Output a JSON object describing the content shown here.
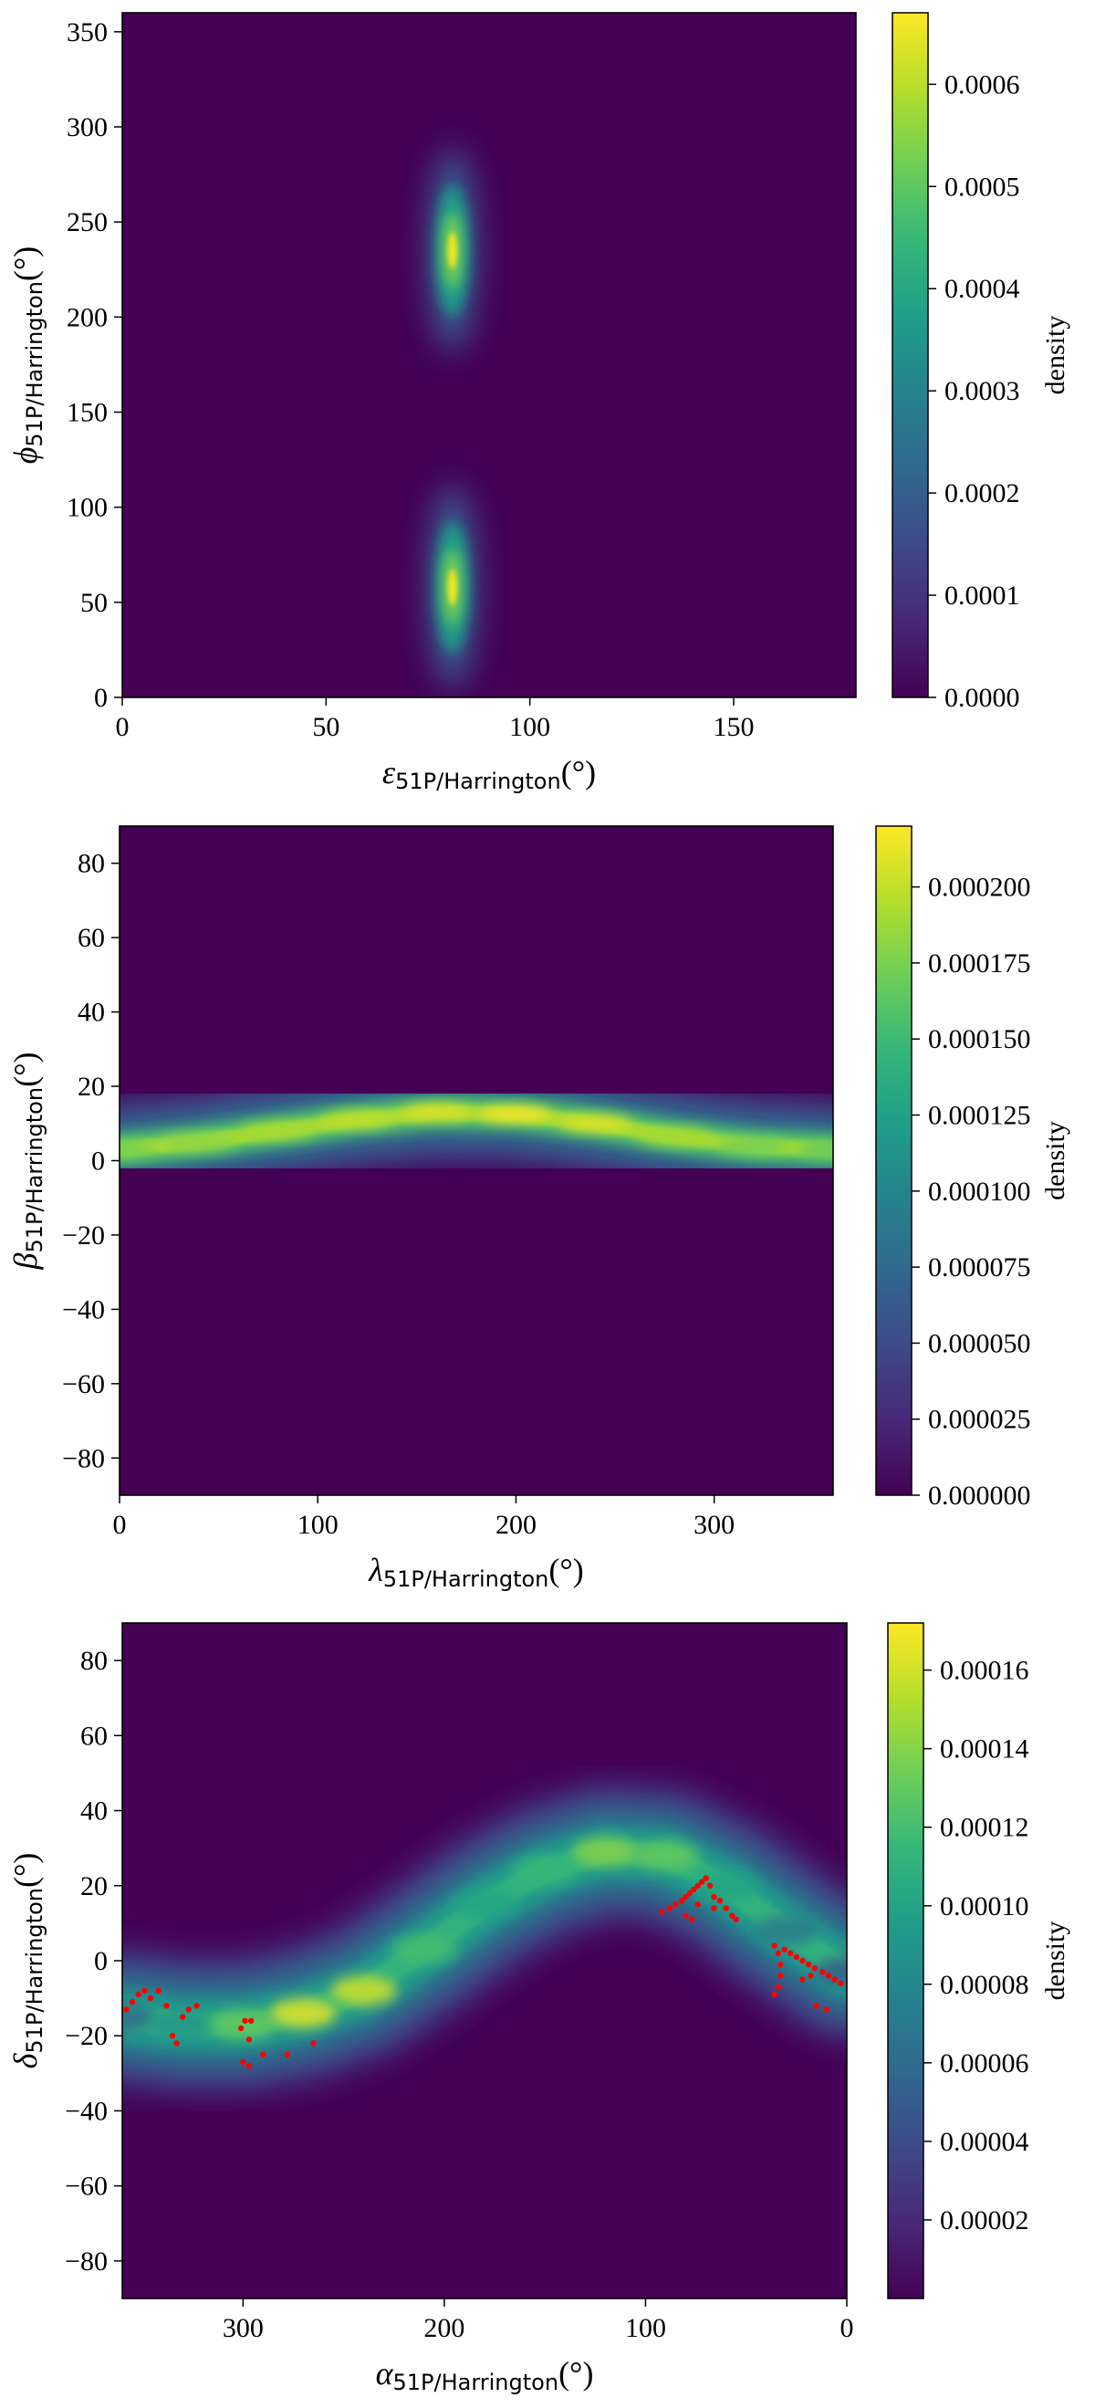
{
  "chart_data": [
    {
      "type": "heatmap",
      "xlabel": {
        "symbol": "ε",
        "sub": "51P/Harrington",
        "unit": "(°)"
      },
      "ylabel": {
        "symbol": "ϕ",
        "sub": "51P/Harrington",
        "unit": "(°)"
      },
      "xlim": [
        0,
        180
      ],
      "ylim": [
        0,
        360
      ],
      "x_reversed": false,
      "xticks": [
        0,
        50,
        100,
        150
      ],
      "yticks": [
        0,
        50,
        100,
        150,
        200,
        250,
        300,
        350
      ],
      "colorbar_label": "density",
      "colorbar_range": [
        0,
        0.00067
      ],
      "colorbar_ticks": [
        "0.0000",
        "0.0001",
        "0.0002",
        "0.0003",
        "0.0004",
        "0.0005",
        "0.0006"
      ],
      "colorbar_tick_values": [
        0,
        0.0001,
        0.0002,
        0.0003,
        0.0004,
        0.0005,
        0.0006
      ],
      "density_peaks": [
        {
          "x": 81,
          "y": 235,
          "peak": 0.00066
        },
        {
          "x": 81,
          "y": 58,
          "peak": 0.00066
        }
      ],
      "observations": []
    },
    {
      "type": "heatmap",
      "xlabel": {
        "symbol": "λ",
        "sub": "51P/Harrington",
        "unit": "(°)"
      },
      "ylabel": {
        "symbol": "β",
        "sub": "51P/Harrington",
        "unit": "(°)"
      },
      "xlim": [
        0,
        360
      ],
      "ylim": [
        -90,
        90
      ],
      "x_reversed": false,
      "xticks": [
        0,
        100,
        200,
        300
      ],
      "yticks": [
        -80,
        -60,
        -40,
        -20,
        0,
        20,
        40,
        60,
        80
      ],
      "colorbar_label": "density",
      "colorbar_range": [
        0,
        0.00022
      ],
      "colorbar_ticks": [
        "0.000000",
        "0.000025",
        "0.000050",
        "0.000075",
        "0.000100",
        "0.000125",
        "0.000150",
        "0.000175",
        "0.000200"
      ],
      "colorbar_tick_values": [
        0,
        2.5e-05,
        5e-05,
        7.5e-05,
        0.0001,
        0.000125,
        0.00015,
        0.000175,
        0.0002
      ],
      "density_ridge": {
        "x": [
          0,
          40,
          80,
          120,
          160,
          200,
          240,
          280,
          320,
          360
        ],
        "y": [
          3,
          5,
          8,
          11,
          13,
          12.5,
          10,
          6.5,
          4,
          3
        ],
        "peak": [
          0.00017,
          0.00018,
          0.00019,
          0.0002,
          0.00021,
          0.00022,
          0.00021,
          0.00019,
          0.00017,
          0.00016
        ]
      },
      "observations": []
    },
    {
      "type": "heatmap",
      "xlabel": {
        "symbol": "α",
        "sub": "51P/Harrington",
        "unit": "(°)"
      },
      "ylabel": {
        "symbol": "δ",
        "sub": "51P/Harrington",
        "unit": "(°)"
      },
      "xlim": [
        360,
        0
      ],
      "ylim": [
        -90,
        90
      ],
      "x_reversed": true,
      "xticks": [
        300,
        200,
        100,
        0
      ],
      "yticks": [
        -80,
        -60,
        -40,
        -20,
        0,
        20,
        40,
        60,
        80
      ],
      "colorbar_label": "density",
      "colorbar_range": [
        0,
        0.000172
      ],
      "colorbar_ticks": [
        "0.00002",
        "0.00004",
        "0.00006",
        "0.00008",
        "0.00010",
        "0.00012",
        "0.00014",
        "0.00016"
      ],
      "colorbar_tick_values": [
        2e-05,
        4e-05,
        6e-05,
        8e-05,
        0.0001,
        0.00012,
        0.00014,
        0.00016
      ],
      "density_ridge": {
        "x": [
          360,
          330,
          300,
          270,
          240,
          210,
          180,
          150,
          120,
          90,
          60,
          30,
          0
        ],
        "y": [
          -15,
          -17,
          -17,
          -14,
          -8,
          3,
          15,
          24,
          29,
          28,
          20,
          8,
          -3
        ],
        "peak": [
          6e-05,
          9e-05,
          0.00013,
          0.000165,
          0.00016,
          0.00012,
          0.0001,
          0.000115,
          0.00014,
          0.00013,
          0.0001,
          7e-05,
          5e-05
        ]
      },
      "observations": {
        "color": "#ff0000",
        "points": [
          [
            358,
            -13
          ],
          [
            355,
            -11
          ],
          [
            352,
            -9
          ],
          [
            349,
            -8
          ],
          [
            346,
            -10
          ],
          [
            342,
            -8
          ],
          [
            338,
            -12
          ],
          [
            335,
            -20
          ],
          [
            333,
            -22
          ],
          [
            330,
            -15
          ],
          [
            327,
            -13
          ],
          [
            323,
            -12
          ],
          [
            301,
            -18
          ],
          [
            299,
            -16
          ],
          [
            297,
            -21
          ],
          [
            296,
            -16
          ],
          [
            300,
            -27
          ],
          [
            297,
            -28
          ],
          [
            290,
            -25
          ],
          [
            278,
            -25
          ],
          [
            265,
            -22
          ],
          [
            92,
            13
          ],
          [
            88,
            14
          ],
          [
            85,
            15
          ],
          [
            82,
            16
          ],
          [
            80,
            17
          ],
          [
            78,
            18
          ],
          [
            76,
            19
          ],
          [
            74,
            20
          ],
          [
            72,
            21
          ],
          [
            70,
            22
          ],
          [
            68,
            20
          ],
          [
            66,
            17
          ],
          [
            63,
            16
          ],
          [
            60,
            14
          ],
          [
            57,
            12
          ],
          [
            55,
            11
          ],
          [
            80,
            12
          ],
          [
            77,
            11
          ],
          [
            74,
            15
          ],
          [
            66,
            14
          ],
          [
            36,
            4
          ],
          [
            34,
            2
          ],
          [
            33,
            -1
          ],
          [
            33,
            -4
          ],
          [
            34,
            -7
          ],
          [
            36,
            -9
          ],
          [
            31,
            3
          ],
          [
            28,
            2
          ],
          [
            25,
            1
          ],
          [
            22,
            0
          ],
          [
            19,
            -1
          ],
          [
            16,
            -2
          ],
          [
            12,
            -3
          ],
          [
            9,
            -4
          ],
          [
            6,
            -5
          ],
          [
            3,
            -6
          ],
          [
            15,
            -12
          ],
          [
            10,
            -13
          ],
          [
            22,
            -5
          ],
          [
            18,
            -4
          ]
        ]
      }
    }
  ]
}
